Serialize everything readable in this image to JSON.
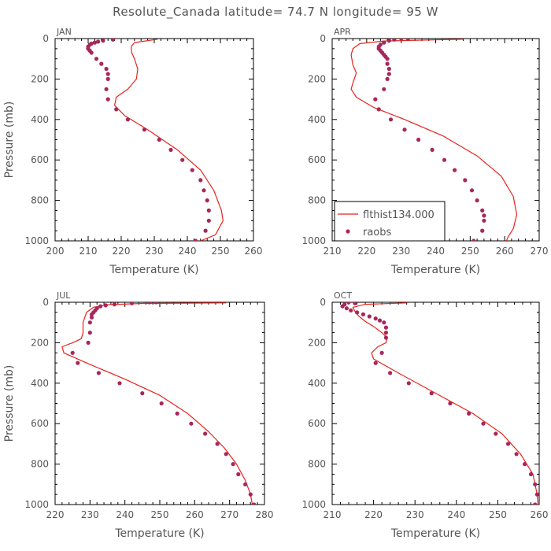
{
  "figure": {
    "title": "Resolute_Canada  latitude= 74.7 N longitude= 95 W"
  },
  "colors": {
    "model_line": "#e8231c",
    "raobs_marker": "#a8275a",
    "axes": "#000000",
    "text": "#555555"
  },
  "legend": {
    "panel": 1,
    "entries": [
      "flthist134.000",
      "raobs"
    ]
  },
  "chart_data": [
    {
      "type": "line",
      "panel_label": "JAN",
      "xlabel": "Temperature (K)",
      "ylabel": "Pressure (mb)",
      "xlim": [
        200,
        260
      ],
      "ylim": [
        1000,
        0
      ],
      "xticks": [
        200,
        210,
        220,
        230,
        240,
        250,
        260
      ],
      "yticks": [
        0,
        200,
        400,
        600,
        800,
        1000
      ],
      "series": [
        {
          "name": "flthist134.000",
          "kind": "line",
          "x": [
            231,
            224,
            223,
            223.2,
            224,
            225,
            224.6,
            222,
            218.5,
            218,
            221,
            228,
            237,
            244,
            248,
            250.3,
            250.8,
            248.5,
            244
          ],
          "y": [
            3,
            20,
            40,
            70,
            100,
            150,
            200,
            250,
            290,
            330,
            380,
            450,
            550,
            650,
            750,
            850,
            900,
            970,
            1000
          ]
        },
        {
          "name": "raobs",
          "kind": "scatter",
          "x": [
            217.5,
            214.5,
            213,
            212,
            211,
            210.5,
            210,
            210,
            210.5,
            211,
            212.5,
            214,
            215.5,
            216,
            216,
            215.5,
            216,
            218.5,
            222,
            227,
            231.5,
            235,
            238.5,
            241.5,
            244,
            245,
            246,
            246.5,
            246.5,
            245.5,
            242.5
          ],
          "y": [
            5,
            10,
            15,
            20,
            25,
            30,
            40,
            50,
            60,
            70,
            100,
            125,
            150,
            175,
            200,
            250,
            300,
            350,
            400,
            450,
            500,
            550,
            600,
            650,
            700,
            750,
            800,
            850,
            900,
            950,
            1000
          ]
        }
      ]
    },
    {
      "type": "line",
      "panel_label": "APR",
      "xlabel": "Temperature (K)",
      "ylabel": "",
      "xlim": [
        210,
        270
      ],
      "ylim": [
        1000,
        0
      ],
      "xticks": [
        210,
        220,
        230,
        240,
        250,
        260,
        270
      ],
      "yticks": [
        0,
        200,
        400,
        600,
        800,
        1000
      ],
      "series": [
        {
          "name": "flthist134.000",
          "kind": "line",
          "x": [
            248,
            225,
            218,
            216,
            215.5,
            216,
            217,
            216,
            215.5,
            217,
            222,
            231,
            242,
            252,
            259,
            262.5,
            263.5,
            262.5,
            261,
            260.5
          ],
          "y": [
            3,
            12,
            25,
            50,
            80,
            130,
            170,
            220,
            250,
            290,
            340,
            400,
            480,
            580,
            680,
            780,
            870,
            940,
            980,
            1000
          ]
        },
        {
          "name": "raobs",
          "kind": "scatter",
          "x": [
            232,
            230,
            228,
            226.5,
            225,
            224,
            223.5,
            223.5,
            224,
            224.5,
            225,
            225.5,
            226,
            226,
            226.5,
            226.5,
            226,
            225,
            222.5,
            223.5,
            227,
            231,
            235,
            239,
            242.5,
            245.5,
            248.5,
            250.5,
            252,
            253.5,
            254,
            254,
            253.5,
            251
          ],
          "y": [
            0,
            0,
            5,
            10,
            20,
            30,
            40,
            50,
            60,
            70,
            80,
            90,
            100,
            125,
            150,
            175,
            200,
            250,
            300,
            350,
            400,
            450,
            500,
            550,
            600,
            650,
            700,
            750,
            800,
            850,
            875,
            900,
            950,
            1000
          ]
        }
      ]
    },
    {
      "type": "line",
      "panel_label": "JUL",
      "xlabel": "Temperature (K)",
      "ylabel": "Pressure (mb)",
      "xlim": [
        220,
        280
      ],
      "ylim": [
        1000,
        0
      ],
      "xticks": [
        220,
        230,
        240,
        250,
        260,
        270,
        280
      ],
      "yticks": [
        0,
        200,
        400,
        600,
        800,
        1000
      ],
      "series": [
        {
          "name": "flthist134.000",
          "kind": "line",
          "x": [
            269,
            245,
            235,
            231,
            229,
            228,
            228,
            227.5,
            225,
            222,
            222.5,
            229,
            240,
            250,
            258,
            264,
            268.5,
            272,
            274.5,
            276,
            276.5
          ],
          "y": [
            3,
            6,
            12,
            25,
            50,
            100,
            150,
            180,
            200,
            220,
            250,
            300,
            380,
            460,
            550,
            640,
            720,
            800,
            880,
            950,
            1000
          ]
        },
        {
          "name": "raobs",
          "kind": "scatter",
          "x": [
            249,
            247,
            242,
            237,
            234.5,
            233,
            232,
            231.5,
            231,
            230.5,
            230.5,
            230,
            230,
            229.5,
            225,
            226.5,
            232.5,
            238.5,
            245,
            250.5,
            255,
            259,
            263,
            266.5,
            269,
            271,
            272.5,
            274.5,
            276,
            277
          ],
          "y": [
            0,
            0,
            5,
            10,
            15,
            20,
            30,
            40,
            50,
            60,
            75,
            100,
            150,
            200,
            250,
            300,
            350,
            400,
            450,
            500,
            550,
            600,
            650,
            700,
            750,
            800,
            850,
            900,
            950,
            1000
          ]
        }
      ]
    },
    {
      "type": "line",
      "panel_label": "OCT",
      "xlabel": "Temperature (K)",
      "ylabel": "",
      "xlim": [
        210,
        260
      ],
      "ylim": [
        1000,
        0
      ],
      "xticks": [
        210,
        220,
        230,
        240,
        250,
        260
      ],
      "yticks": [
        0,
        200,
        400,
        600,
        800,
        1000
      ],
      "series": [
        {
          "name": "flthist134.000",
          "kind": "line",
          "x": [
            228,
            218,
            215,
            215.5,
            216.5,
            218,
            220,
            222,
            223.3,
            223,
            221,
            219.5,
            220,
            226,
            235,
            244,
            251,
            255.5,
            258.5,
            259.5,
            259.7
          ],
          "y": [
            3,
            10,
            25,
            45,
            70,
            95,
            120,
            150,
            175,
            200,
            220,
            250,
            280,
            350,
            450,
            550,
            650,
            750,
            850,
            950,
            1000
          ]
        },
        {
          "name": "raobs",
          "kind": "scatter",
          "x": [
            214,
            215.5,
            213,
            212.5,
            213.5,
            214.5,
            216,
            217.5,
            219,
            220.5,
            221.5,
            222.5,
            223,
            223,
            223,
            222,
            220.5,
            224,
            228.5,
            234,
            238.5,
            243,
            246.5,
            249.5,
            252.5,
            254.5,
            256.5,
            258,
            259,
            259.5,
            259
          ],
          "y": [
            0,
            5,
            10,
            20,
            30,
            40,
            50,
            60,
            70,
            80,
            90,
            100,
            125,
            150,
            175,
            250,
            300,
            350,
            400,
            450,
            500,
            550,
            600,
            650,
            700,
            750,
            800,
            850,
            900,
            950,
            1000
          ]
        }
      ]
    }
  ]
}
